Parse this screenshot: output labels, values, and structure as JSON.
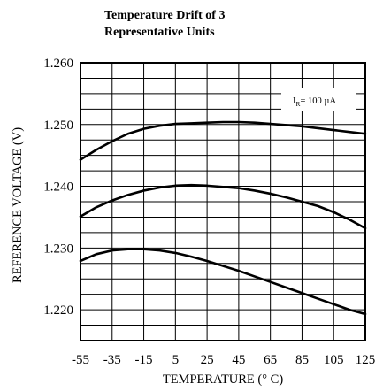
{
  "chart_data": {
    "type": "line",
    "title_lines": [
      "Temperature Drift of 3",
      "Representative Units"
    ],
    "xlabel": "TEMPERATURE (° C)",
    "ylabel": "REFERENCE VOLTAGE (V)",
    "xlim": [
      -55,
      125
    ],
    "ylim": [
      1.215,
      1.26
    ],
    "x_ticks": [
      -55,
      -35,
      -15,
      5,
      25,
      45,
      65,
      85,
      105,
      125
    ],
    "x_tick_labels": [
      "-55",
      "-35",
      "-15",
      "5",
      "25",
      "45",
      "65",
      "85",
      "105",
      "125"
    ],
    "y_ticks": [
      1.22,
      1.23,
      1.24,
      1.25,
      1.26
    ],
    "y_tick_labels": [
      "1.220",
      "1.230",
      "1.240",
      "1.250",
      "1.260"
    ],
    "grid": true,
    "annotation": {
      "prefix": "I",
      "subscript": "R",
      "suffix": "= 100 µA"
    },
    "series": [
      {
        "x": [
          -55,
          -45,
          -35,
          -25,
          -15,
          -5,
          5,
          15,
          25,
          35,
          45,
          55,
          65,
          75,
          85,
          95,
          105,
          115,
          125
        ],
        "y": [
          1.2443,
          1.2459,
          1.2473,
          1.2485,
          1.2493,
          1.2498,
          1.2501,
          1.2502,
          1.2503,
          1.2504,
          1.2504,
          1.2503,
          1.2501,
          1.2499,
          1.2497,
          1.2494,
          1.2491,
          1.2488,
          1.2485
        ]
      },
      {
        "x": [
          -55,
          -45,
          -35,
          -25,
          -15,
          -5,
          5,
          15,
          25,
          35,
          45,
          55,
          65,
          75,
          85,
          95,
          105,
          115,
          125
        ],
        "y": [
          1.2351,
          1.2366,
          1.2377,
          1.2386,
          1.2393,
          1.2398,
          1.2401,
          1.2402,
          1.2401,
          1.2399,
          1.2397,
          1.2393,
          1.2388,
          1.2382,
          1.2375,
          1.2368,
          1.2358,
          1.2346,
          1.2332
        ]
      },
      {
        "x": [
          -55,
          -45,
          -35,
          -25,
          -15,
          -5,
          5,
          15,
          25,
          35,
          45,
          55,
          65,
          75,
          85,
          95,
          105,
          115,
          125
        ],
        "y": [
          1.2279,
          1.229,
          1.2296,
          1.2298,
          1.2298,
          1.2296,
          1.2292,
          1.2286,
          1.2279,
          1.2271,
          1.2263,
          1.2254,
          1.2245,
          1.2236,
          1.2227,
          1.2218,
          1.2209,
          1.22,
          1.2193
        ]
      }
    ],
    "line_color": "#000000"
  }
}
